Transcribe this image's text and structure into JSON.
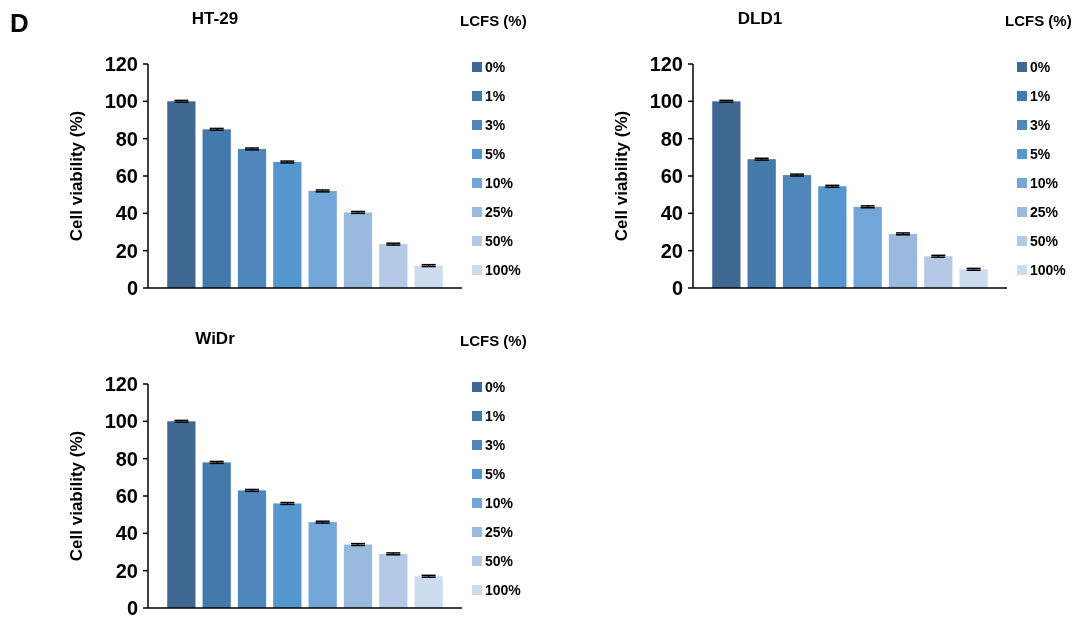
{
  "chart_data": [
    {
      "type": "bar",
      "title": "HT-29",
      "ylabel": "Cell viability (%)",
      "legend_title": "LCFS (%)",
      "annotations": [
        "D"
      ],
      "categories": [
        null
      ],
      "ylim": [
        0,
        120
      ],
      "yticks": [
        0,
        20,
        40,
        60,
        80,
        100,
        120
      ],
      "legend": "right",
      "grid": false,
      "series": [
        {
          "name": "0%",
          "color": "#3f6993",
          "values": [
            100
          ],
          "errors": [
            0.5
          ]
        },
        {
          "name": "1%",
          "color": "#4479ab",
          "values": [
            85
          ],
          "errors": [
            0.5
          ]
        },
        {
          "name": "3%",
          "color": "#4f87bd",
          "values": [
            74.5
          ],
          "errors": [
            0.5
          ]
        },
        {
          "name": "5%",
          "color": "#5596cf",
          "values": [
            67.5
          ],
          "errors": [
            0.5
          ]
        },
        {
          "name": "10%",
          "color": "#72a6d9",
          "values": [
            52
          ],
          "errors": [
            0.5
          ]
        },
        {
          "name": "25%",
          "color": "#9ab9df",
          "values": [
            40.5
          ],
          "errors": [
            0.5
          ]
        },
        {
          "name": "50%",
          "color": "#b4c9e6",
          "values": [
            23.5
          ],
          "errors": [
            0.5
          ]
        },
        {
          "name": "100%",
          "color": "#cddcef",
          "values": [
            12
          ],
          "errors": [
            0.5
          ]
        }
      ]
    },
    {
      "type": "bar",
      "title": "DLD1",
      "ylabel": "Cell viability (%)",
      "legend_title": "LCFS (%)",
      "categories": [
        null
      ],
      "ylim": [
        0,
        120
      ],
      "yticks": [
        0,
        20,
        40,
        60,
        80,
        100,
        120
      ],
      "legend": "right",
      "grid": false,
      "series": [
        {
          "name": "0%",
          "color": "#3f6993",
          "values": [
            100
          ],
          "errors": [
            0.5
          ]
        },
        {
          "name": "1%",
          "color": "#4479ab",
          "values": [
            69
          ],
          "errors": [
            0.5
          ]
        },
        {
          "name": "3%",
          "color": "#4f87bd",
          "values": [
            60.5
          ],
          "errors": [
            0.5
          ]
        },
        {
          "name": "5%",
          "color": "#5596cf",
          "values": [
            54.5
          ],
          "errors": [
            0.5
          ]
        },
        {
          "name": "10%",
          "color": "#72a6d9",
          "values": [
            43.5
          ],
          "errors": [
            0.5
          ]
        },
        {
          "name": "25%",
          "color": "#9ab9df",
          "values": [
            29
          ],
          "errors": [
            0.5
          ]
        },
        {
          "name": "50%",
          "color": "#b4c9e6",
          "values": [
            17
          ],
          "errors": [
            0.5
          ]
        },
        {
          "name": "100%",
          "color": "#cddcef",
          "values": [
            10
          ],
          "errors": [
            0.5
          ]
        }
      ]
    },
    {
      "type": "bar",
      "title": "WiDr",
      "ylabel": "Cell viability (%)",
      "legend_title": "LCFS (%)",
      "categories": [
        null
      ],
      "ylim": [
        0,
        120
      ],
      "yticks": [
        0,
        20,
        40,
        60,
        80,
        100,
        120
      ],
      "legend": "right",
      "grid": false,
      "series": [
        {
          "name": "0%",
          "color": "#3f6993",
          "values": [
            100
          ],
          "errors": [
            0.5
          ]
        },
        {
          "name": "1%",
          "color": "#4479ab",
          "values": [
            78
          ],
          "errors": [
            0.5
          ]
        },
        {
          "name": "3%",
          "color": "#4f87bd",
          "values": [
            63
          ],
          "errors": [
            0.5
          ]
        },
        {
          "name": "5%",
          "color": "#5596cf",
          "values": [
            56
          ],
          "errors": [
            0.5
          ]
        },
        {
          "name": "10%",
          "color": "#72a6d9",
          "values": [
            46
          ],
          "errors": [
            0.5
          ]
        },
        {
          "name": "25%",
          "color": "#9ab9df",
          "values": [
            34
          ],
          "errors": [
            0.5
          ]
        },
        {
          "name": "50%",
          "color": "#b4c9e6",
          "values": [
            29
          ],
          "errors": [
            0.5
          ]
        },
        {
          "name": "100%",
          "color": "#cddcef",
          "values": [
            17
          ],
          "errors": [
            0.5
          ]
        }
      ]
    }
  ]
}
